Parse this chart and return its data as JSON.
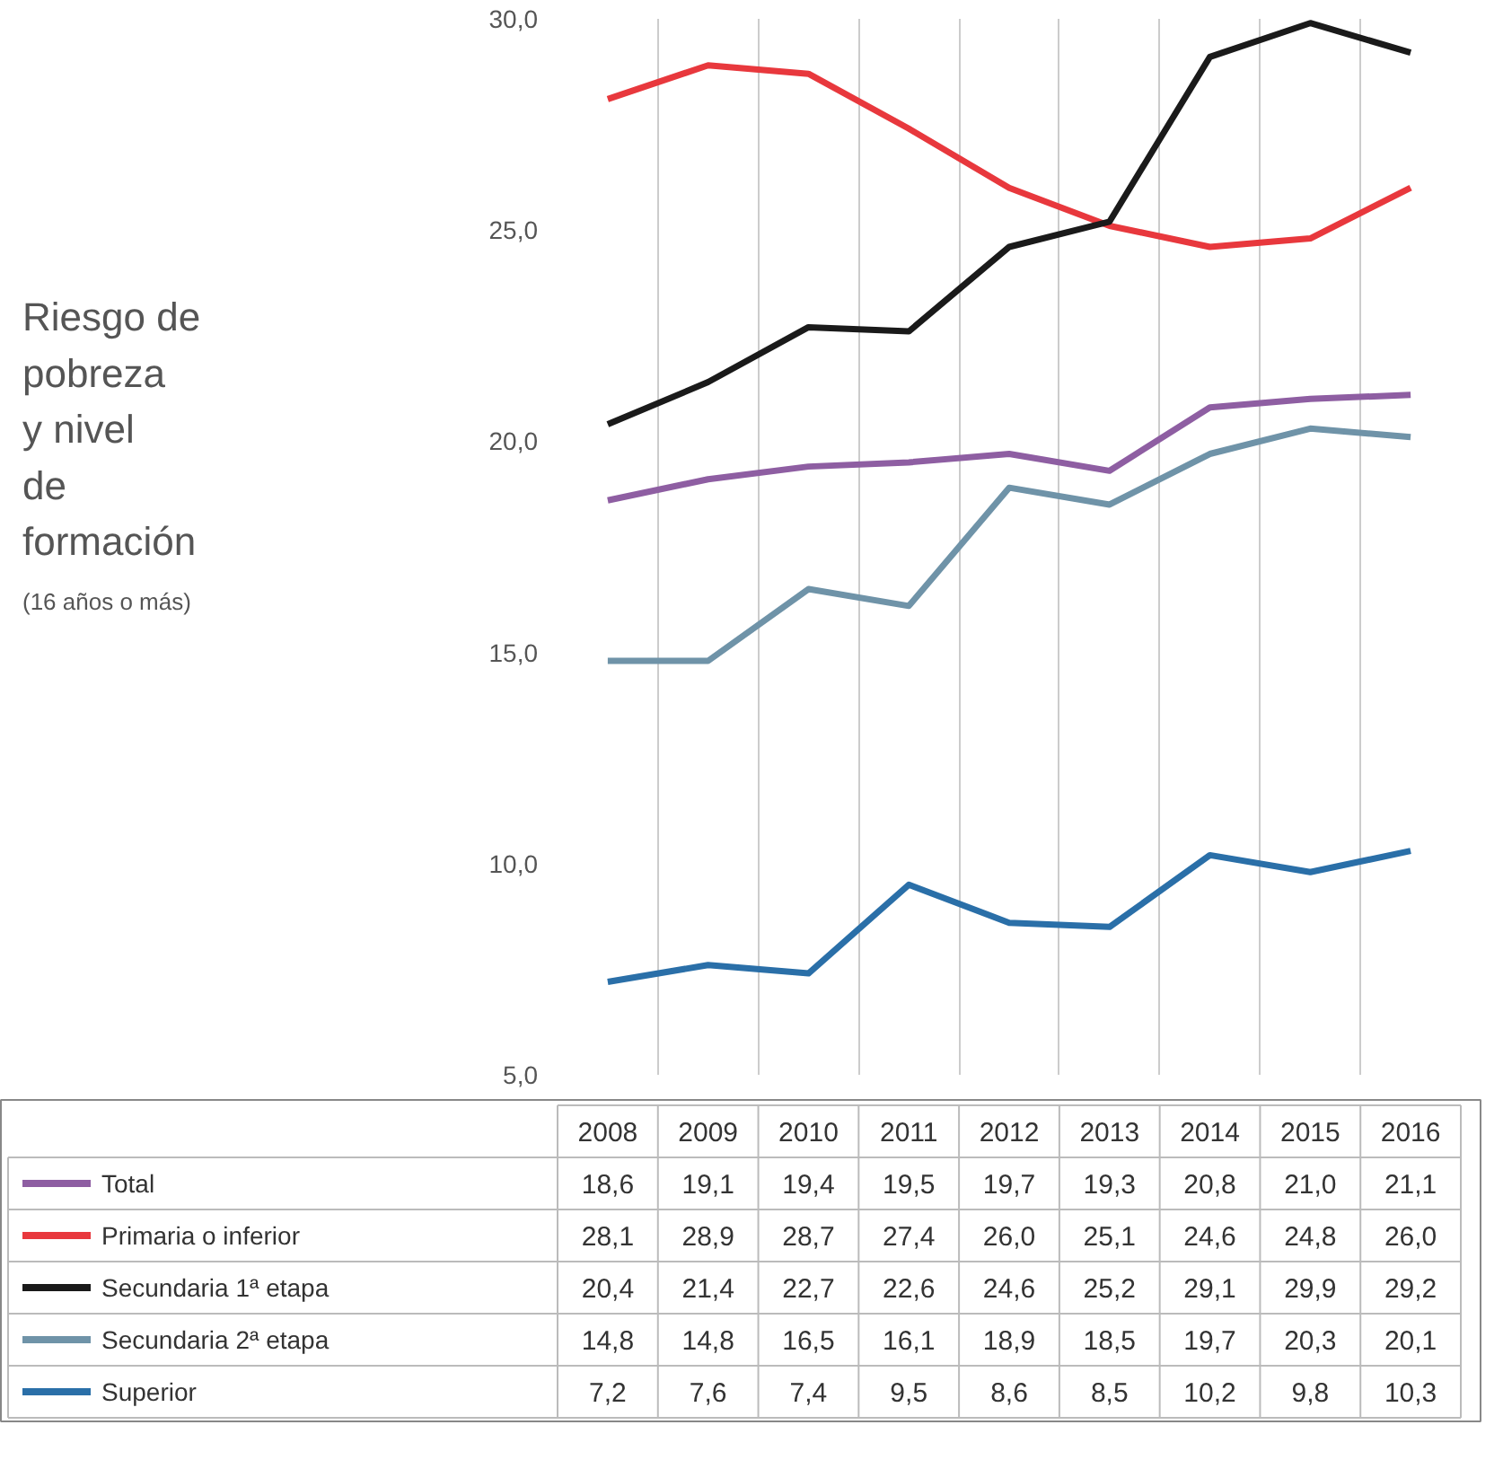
{
  "chart_data": {
    "type": "line",
    "title": "Riesgo de\npobreza\ny nivel\nde\nformación",
    "subtitle": "(16 años o más)",
    "categories": [
      "2008",
      "2009",
      "2010",
      "2011",
      "2012",
      "2013",
      "2014",
      "2015",
      "2016"
    ],
    "series": [
      {
        "name": "Total",
        "color": "#8e5ea2",
        "values": [
          18.6,
          19.1,
          19.4,
          19.5,
          19.7,
          19.3,
          20.8,
          21.0,
          21.1
        ],
        "value_labels": [
          "18,6",
          "19,1",
          "19,4",
          "19,5",
          "19,7",
          "19,3",
          "20,8",
          "21,0",
          "21,1"
        ]
      },
      {
        "name": "Primaria o inferior",
        "color": "#e8383d",
        "values": [
          28.1,
          28.9,
          28.7,
          27.4,
          26.0,
          25.1,
          24.6,
          24.8,
          26.0
        ],
        "value_labels": [
          "28,1",
          "28,9",
          "28,7",
          "27,4",
          "26,0",
          "25,1",
          "24,6",
          "24,8",
          "26,0"
        ]
      },
      {
        "name": "Secundaria 1ª etapa",
        "color": "#1a1a1a",
        "values": [
          20.4,
          21.4,
          22.7,
          22.6,
          24.6,
          25.2,
          29.1,
          29.9,
          29.2
        ],
        "value_labels": [
          "20,4",
          "21,4",
          "22,7",
          "22,6",
          "24,6",
          "25,2",
          "29,1",
          "29,9",
          "29,2"
        ]
      },
      {
        "name": "Secundaria 2ª etapa",
        "color": "#6f93a8",
        "values": [
          14.8,
          14.8,
          16.5,
          16.1,
          18.9,
          18.5,
          19.7,
          20.3,
          20.1
        ],
        "value_labels": [
          "14,8",
          "14,8",
          "16,5",
          "16,1",
          "18,9",
          "18,5",
          "19,7",
          "20,3",
          "20,1"
        ]
      },
      {
        "name": "Superior",
        "color": "#2a6fa8",
        "values": [
          7.2,
          7.6,
          7.4,
          9.5,
          8.6,
          8.5,
          10.2,
          9.8,
          10.3
        ],
        "value_labels": [
          "7,2",
          "7,6",
          "7,4",
          "9,5",
          "8,6",
          "8,5",
          "10,2",
          "9,8",
          "10,3"
        ]
      }
    ],
    "ylim": [
      5,
      30
    ],
    "yticks": [
      {
        "value": 5,
        "label": "5,0"
      },
      {
        "value": 10,
        "label": "10,0"
      },
      {
        "value": 15,
        "label": "15,0"
      },
      {
        "value": 20,
        "label": "20,0"
      },
      {
        "value": 25,
        "label": "25,0"
      },
      {
        "value": 30,
        "label": "30,0"
      }
    ],
    "grid": "x",
    "legend": "bottom",
    "line_style": "solid",
    "marker": "none"
  }
}
